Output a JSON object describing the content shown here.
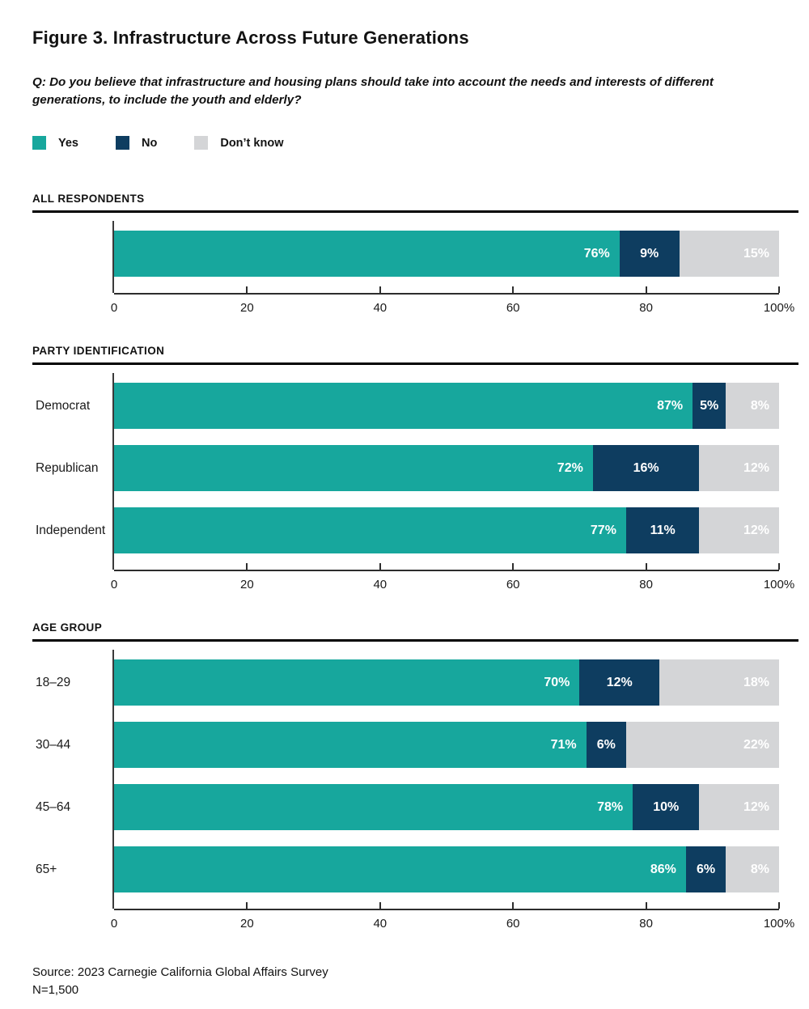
{
  "page": {
    "title": "Figure 3. Infrastructure Across Future Generations",
    "question": "Q: Do you believe that infrastructure and housing plans should take into account the needs and interests of different generations, to include the youth and elderly?",
    "source": "Source: 2023 Carnegie California Global Affairs Survey",
    "sample_size": "N=1,500"
  },
  "legend": [
    {
      "label": "Yes",
      "color": "#17A79D"
    },
    {
      "label": "No",
      "color": "#0E3D60"
    },
    {
      "label": "Don’t know",
      "color": "#D4D5D7"
    }
  ],
  "colors": {
    "yes": "#17A79D",
    "no": "#0E3D60",
    "dont_know": "#D4D5D7",
    "axis": "#2D2D2D",
    "section_rule": "#000000",
    "text": "#1A1A1A",
    "bar_label": "#FFFFFF"
  },
  "axis": {
    "tick_labels": [
      "0",
      "20",
      "40",
      "60",
      "80",
      "100%"
    ],
    "tick_values": [
      0,
      20,
      40,
      60,
      80,
      100
    ],
    "xlim": [
      0,
      100
    ],
    "value_suffix": "%",
    "grid": false
  },
  "chart_data": [
    {
      "type": "bar",
      "stacked": true,
      "orientation": "horizontal",
      "section": "ALL RESPONDENTS",
      "categories": [
        ""
      ],
      "series": [
        {
          "name": "Yes",
          "values": [
            76
          ]
        },
        {
          "name": "No",
          "values": [
            9
          ]
        },
        {
          "name": "Don’t know",
          "values": [
            15
          ]
        }
      ],
      "xlim": [
        0,
        100
      ]
    },
    {
      "type": "bar",
      "stacked": true,
      "orientation": "horizontal",
      "section": "PARTY IDENTIFICATION",
      "categories": [
        "Democrat",
        "Republican",
        "Independent"
      ],
      "series": [
        {
          "name": "Yes",
          "values": [
            87,
            72,
            77
          ]
        },
        {
          "name": "No",
          "values": [
            5,
            16,
            11
          ]
        },
        {
          "name": "Don’t know",
          "values": [
            8,
            12,
            12
          ]
        }
      ],
      "xlim": [
        0,
        100
      ]
    },
    {
      "type": "bar",
      "stacked": true,
      "orientation": "horizontal",
      "section": "AGE GROUP",
      "categories": [
        "18–29",
        "30–44",
        "45–64",
        "65+"
      ],
      "series": [
        {
          "name": "Yes",
          "values": [
            70,
            71,
            78,
            86
          ]
        },
        {
          "name": "No",
          "values": [
            12,
            6,
            10,
            6
          ]
        },
        {
          "name": "Don’t know",
          "values": [
            18,
            22,
            12,
            8
          ]
        }
      ],
      "xlim": [
        0,
        100
      ]
    }
  ]
}
